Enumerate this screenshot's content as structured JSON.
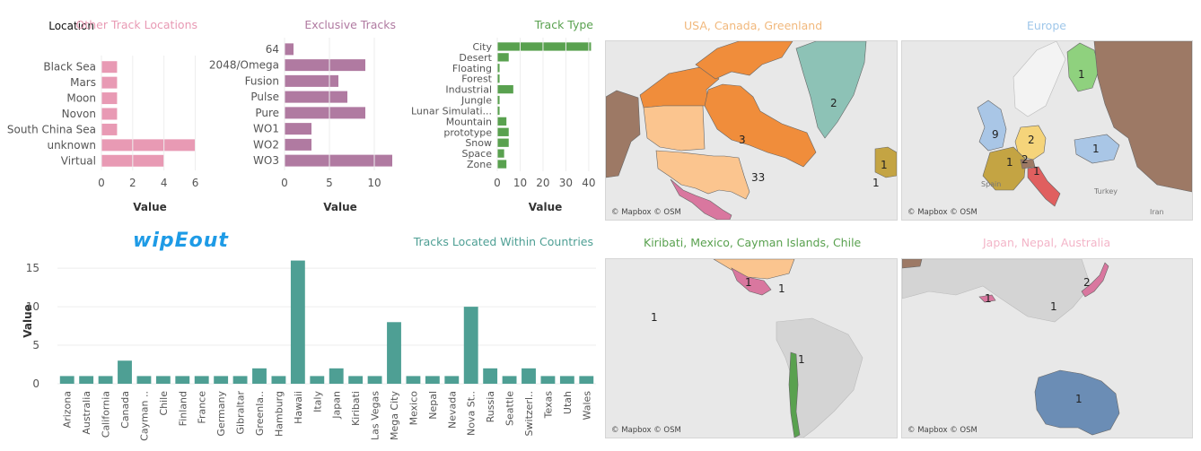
{
  "colors": {
    "pink": "#e89ab4",
    "purple": "#b07aa1",
    "green": "#59a14f",
    "teal": "#4e9f94",
    "title_orange": "#f1b87c",
    "title_blue": "#9fc7ea",
    "title_green": "#59a14f",
    "title_pink": "#f3b5c8",
    "title_teal": "#4e9f94"
  },
  "logo": {
    "text": "wipEout"
  },
  "chart_data": [
    {
      "id": "other-locations",
      "type": "bar",
      "orientation": "horizontal",
      "title": "Other Track Locations",
      "header": "Location",
      "categories": [
        "Black Sea",
        "Mars",
        "Moon",
        "Novon",
        "South China Sea",
        "unknown",
        "Virtual"
      ],
      "values": [
        1,
        1,
        1,
        1,
        1,
        6,
        4
      ],
      "xlabel": "Value",
      "ticks": [
        0,
        2,
        4,
        6
      ],
      "xlim": [
        0,
        6.2
      ]
    },
    {
      "id": "exclusive-tracks",
      "type": "bar",
      "orientation": "horizontal",
      "title": "Exclusive Tracks",
      "categories": [
        "64",
        "2048/Omega",
        "Fusion",
        "Pulse",
        "Pure",
        "WO1",
        "WO2",
        "WO3"
      ],
      "values": [
        1,
        9,
        6,
        7,
        9,
        3,
        3,
        12
      ],
      "xlabel": "Value",
      "ticks": [
        0,
        5,
        10
      ],
      "xlim": [
        0,
        12.4
      ]
    },
    {
      "id": "track-type",
      "type": "bar",
      "orientation": "horizontal",
      "title": "Track Type",
      "categories": [
        "City",
        "Desert",
        "Floating",
        "Forest",
        "Industrial",
        "Jungle",
        "Lunar Simulati...",
        "Mountain",
        "prototype",
        "Snow",
        "Space",
        "Zone"
      ],
      "values": [
        41,
        5,
        1,
        1,
        7,
        1,
        1,
        4,
        5,
        5,
        3,
        4
      ],
      "xlabel": "Value",
      "ticks": [
        0,
        10,
        20,
        30,
        40
      ],
      "xlim": [
        0,
        42
      ]
    },
    {
      "id": "countries",
      "type": "bar",
      "title": "Tracks Located Within Countries",
      "categories": [
        "Arizona",
        "Australia",
        "California",
        "Canada",
        "Cayman ..",
        "Chile",
        "Finland",
        "France",
        "Germany",
        "Gibraltar",
        "Greenla..",
        "Hamburg",
        "Hawaii",
        "Italy",
        "Japan",
        "Kiribati",
        "Las Vegas",
        "Mega City",
        "Mexico",
        "Nepal",
        "Nevada",
        "Nova St..",
        "Russia",
        "Seattle",
        "Switzerl..",
        "Texas",
        "Utah",
        "Wales"
      ],
      "values": [
        1,
        1,
        1,
        3,
        1,
        1,
        1,
        1,
        1,
        1,
        2,
        1,
        16,
        1,
        2,
        1,
        1,
        8,
        1,
        1,
        1,
        10,
        2,
        1,
        2,
        1,
        1,
        1
      ],
      "ylabel": "Value",
      "ticks": [
        0,
        5,
        10,
        15
      ],
      "ylim": [
        0,
        16.3
      ]
    }
  ],
  "maps": [
    {
      "id": "usa",
      "title": "USA, Canada, Greenland",
      "credit": "© Mapbox © OSM",
      "labels": [
        "2",
        "3",
        "33",
        "1",
        "1"
      ]
    },
    {
      "id": "europe",
      "title": "Europe",
      "credit": "© Mapbox © OSM",
      "labels": [
        "1",
        "9",
        "2",
        "2",
        "1",
        "1",
        "1"
      ],
      "places": [
        "Spain",
        "Turkey",
        "Iran"
      ]
    },
    {
      "id": "kiribati",
      "title": "Kiribati, Mexico, Cayman Islands, Chile",
      "credit": "© Mapbox © OSM",
      "labels": [
        "1",
        "1",
        "1",
        "1"
      ]
    },
    {
      "id": "japan",
      "title": "Japan, Nepal, Australia",
      "credit": "© Mapbox © OSM",
      "labels": [
        "2",
        "1",
        "1",
        "1"
      ]
    }
  ]
}
